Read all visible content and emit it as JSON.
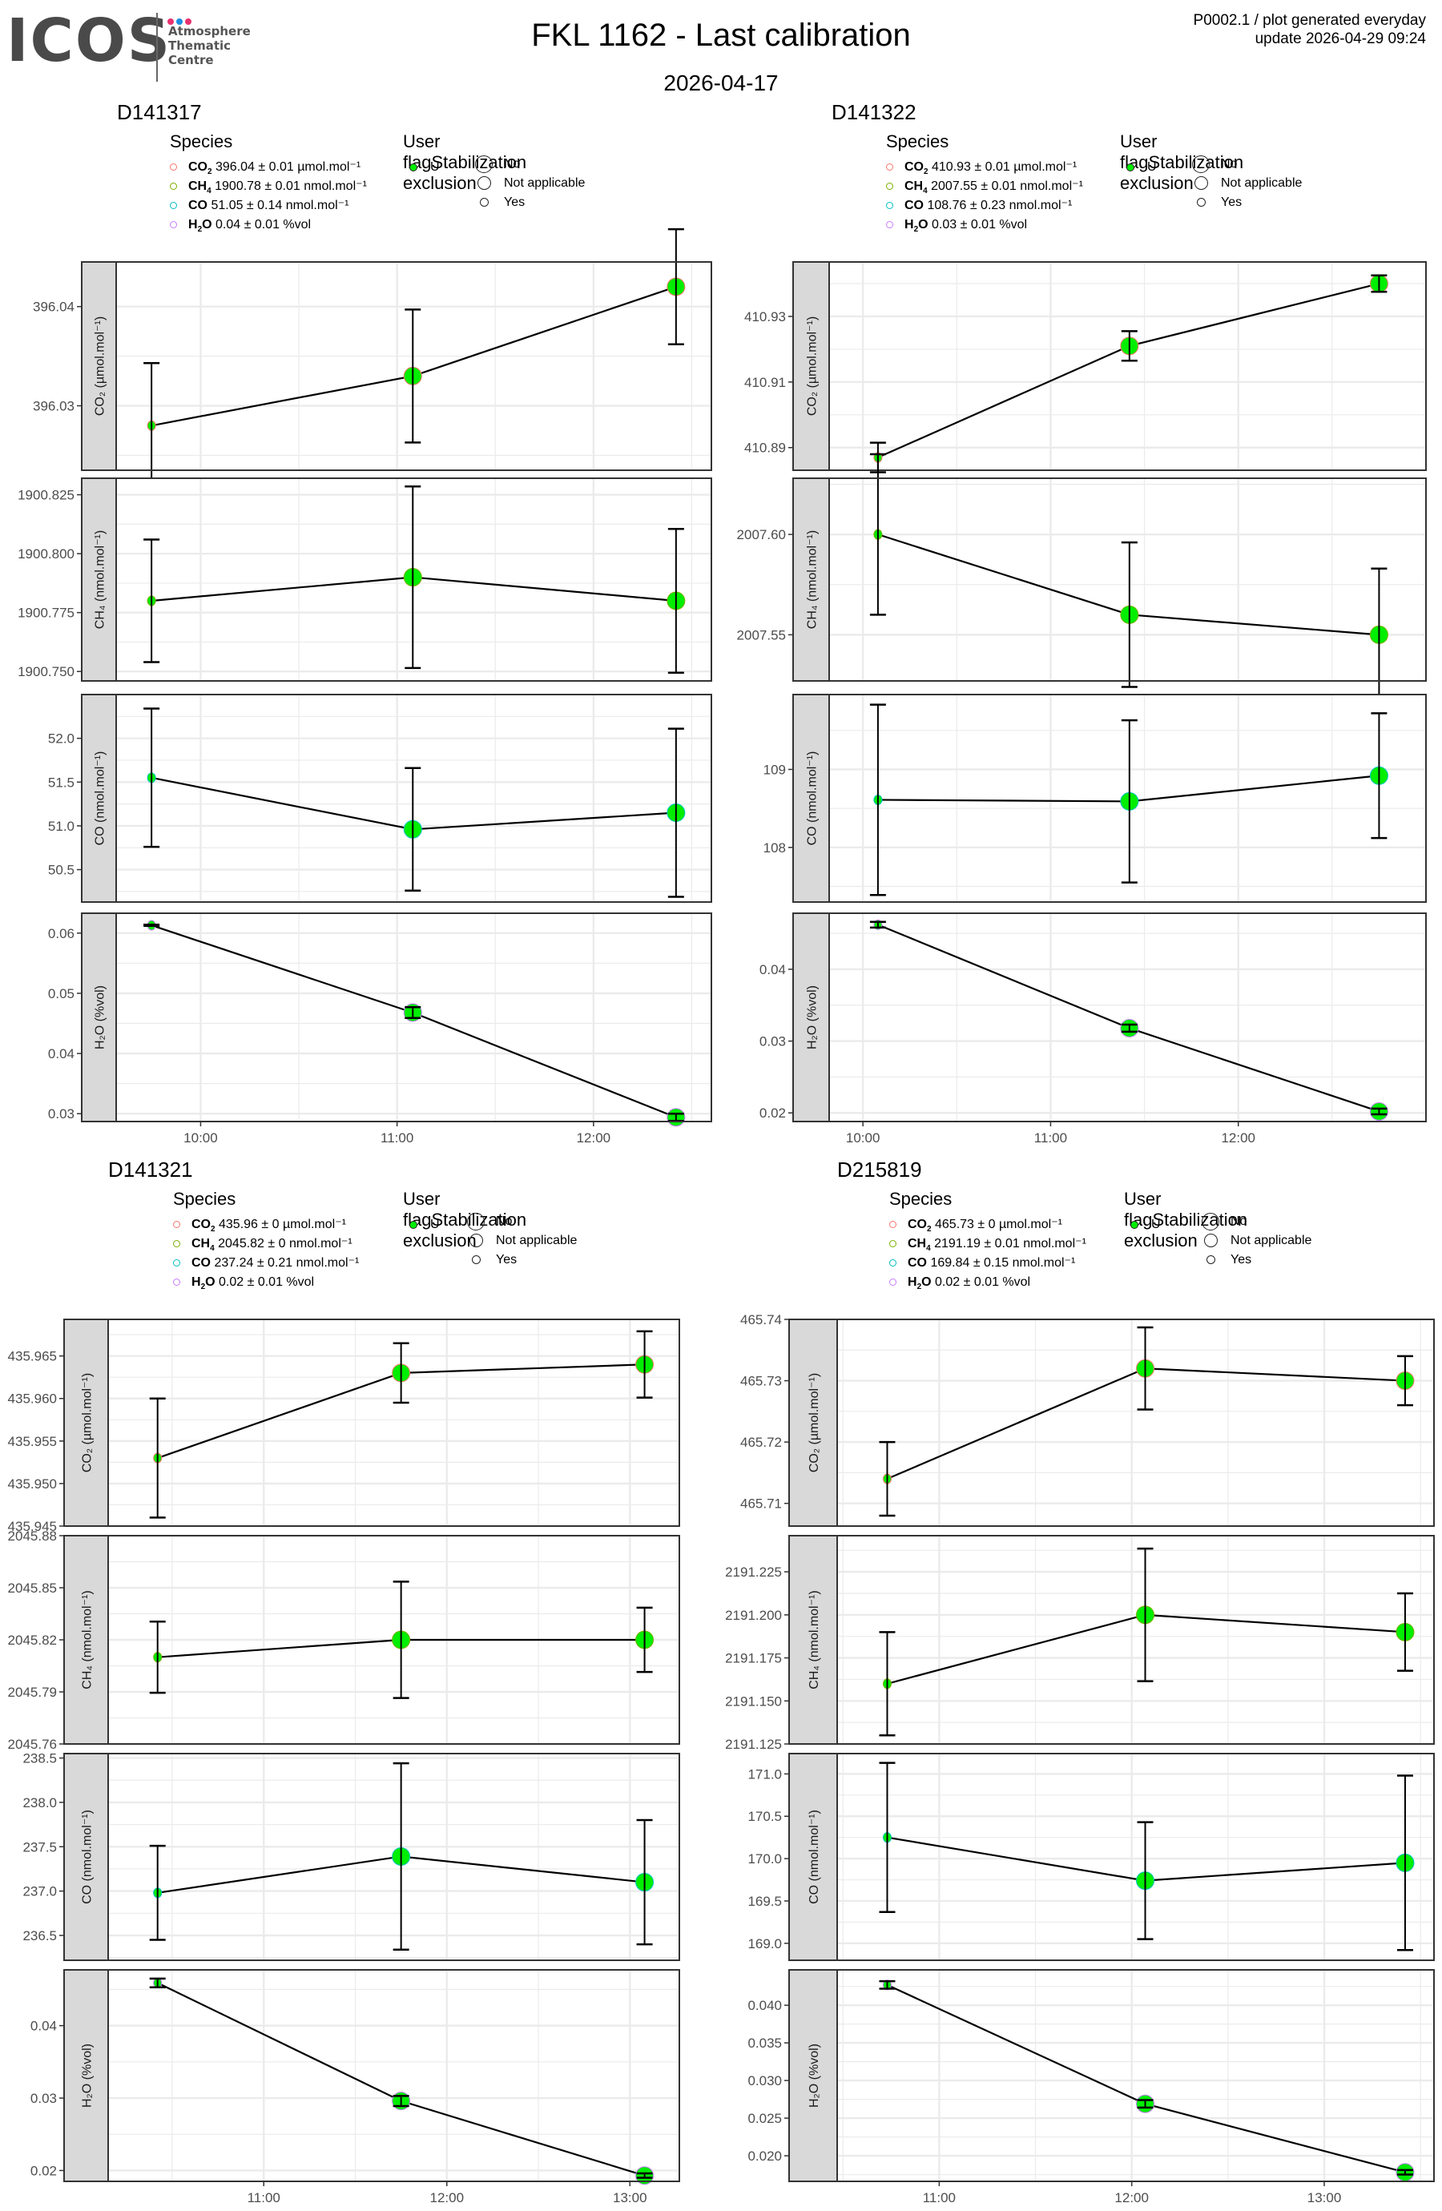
{
  "header": {
    "logo_text": "ICOS",
    "logo_subtitle": [
      "Atmosphere",
      "Thematic",
      "Centre"
    ],
    "logo_dot_colors": [
      "#e8326f",
      "#1e8fe0",
      "#e8326f"
    ],
    "title": "FKL 1162 - Last calibration",
    "subtitle": "2026-04-17",
    "meta_line1": "P0002.1 / plot generated everyday",
    "meta_line2": "update  2026-04-29 09:24"
  },
  "legend_labels": {
    "species_title": "Species",
    "user_flag_title": "User flag",
    "stab_title": "Stabilization exclusion",
    "user_flag_items": [
      "U"
    ],
    "stab_items": [
      "No",
      "Not applicable",
      "Yes"
    ]
  },
  "colors": {
    "CO2": "#f8766d",
    "CH4": "#7cae00",
    "CO": "#00bfc4",
    "H2O": "#c77cff",
    "point_fill": "#00ee00",
    "strip_bg": "#d9d9d9",
    "grid": "#ebebeb"
  },
  "chart_data": [
    {
      "type": "line",
      "cylinder": "D141317",
      "legend": [
        {
          "species": "CO2",
          "label": "CO2",
          "value": "396.04",
          "unc": "0.01",
          "unit": "µmol.mol⁻¹"
        },
        {
          "species": "CH4",
          "label": "CH4",
          "value": "1900.78",
          "unc": "0.01",
          "unit": "nmol.mol⁻¹"
        },
        {
          "species": "CO",
          "label": "CO",
          "value": "51.05",
          "unc": "0.14",
          "unit": "nmol.mol⁻¹"
        },
        {
          "species": "H2O",
          "label": "H2O",
          "value": "0.04",
          "unc": "0.01",
          "unit": "%vol"
        }
      ],
      "x_ticks": [
        "10:00",
        "11:00",
        "12:00"
      ],
      "x_tick_hours": [
        10,
        11,
        12
      ],
      "x_range_hours": [
        9.57,
        12.6
      ],
      "x_hours": [
        9.75,
        11.08,
        12.42
      ],
      "panels": [
        {
          "species": "CO2",
          "ylabel": "CO₂ (µmol.mol⁻¹)",
          "ylim": [
            396.0235,
            396.0445
          ],
          "yticks": [
            396.03,
            396.04
          ],
          "ytick_labels": [
            "396.03",
            "396.04"
          ],
          "y": [
            396.028,
            396.033,
            396.042
          ],
          "err": [
            0.0063,
            0.0067,
            0.0058
          ],
          "sizes": [
            "small",
            "large",
            "large"
          ]
        },
        {
          "species": "CH4",
          "ylabel": "CH₄ (nmol.mol⁻¹)",
          "ylim": [
            1900.746,
            1900.832
          ],
          "yticks": [
            1900.75,
            1900.775,
            1900.8,
            1900.825
          ],
          "ytick_labels": [
            "1900.750",
            "1900.775",
            "1900.800",
            "1900.825"
          ],
          "y": [
            1900.78,
            1900.79,
            1900.78
          ],
          "err": [
            0.026,
            0.0385,
            0.0305
          ],
          "sizes": [
            "small",
            "large",
            "large"
          ]
        },
        {
          "species": "CO",
          "ylabel": "CO (nmol.mol⁻¹)",
          "ylim": [
            50.13,
            52.5
          ],
          "yticks": [
            50.5,
            51.0,
            51.5,
            52.0
          ],
          "ytick_labels": [
            "50.5",
            "51.0",
            "51.5",
            "52.0"
          ],
          "y": [
            51.55,
            50.96,
            51.15
          ],
          "err": [
            0.79,
            0.7,
            0.96
          ],
          "sizes": [
            "small",
            "large",
            "large"
          ]
        },
        {
          "species": "H2O",
          "ylabel": "H₂O (%vol)",
          "ylim": [
            0.0287,
            0.0633
          ],
          "yticks": [
            0.03,
            0.04,
            0.05,
            0.06
          ],
          "ytick_labels": [
            "0.03",
            "0.04",
            "0.05",
            "0.06"
          ],
          "y": [
            0.0613,
            0.0468,
            0.0294
          ],
          "err": [
            0.0001,
            0.0009,
            0.0006
          ],
          "sizes": [
            "small",
            "large",
            "large"
          ]
        }
      ]
    },
    {
      "type": "line",
      "cylinder": "D141322",
      "legend": [
        {
          "species": "CO2",
          "label": "CO2",
          "value": "410.93",
          "unc": "0.01",
          "unit": "µmol.mol⁻¹"
        },
        {
          "species": "CH4",
          "label": "CH4",
          "value": "2007.55",
          "unc": "0.01",
          "unit": "nmol.mol⁻¹"
        },
        {
          "species": "CO",
          "label": "CO",
          "value": "108.76",
          "unc": "0.23",
          "unit": "nmol.mol⁻¹"
        },
        {
          "species": "H2O",
          "label": "H2O",
          "value": "0.03",
          "unc": "0.01",
          "unit": "%vol"
        }
      ],
      "x_ticks": [
        "10:00",
        "11:00",
        "12:00"
      ],
      "x_tick_hours": [
        10,
        11,
        12
      ],
      "x_range_hours": [
        9.82,
        13.0
      ],
      "x_hours": [
        10.08,
        11.42,
        12.75
      ],
      "panels": [
        {
          "species": "CO2",
          "ylabel": "CO₂ (µmol.mol⁻¹)",
          "ylim": [
            410.8831,
            410.9466
          ],
          "yticks": [
            410.89,
            410.91,
            410.93
          ],
          "ytick_labels": [
            "410.89",
            "410.91",
            "410.93"
          ],
          "y": [
            410.887,
            410.921,
            410.94
          ],
          "err": [
            0.0045,
            0.0045,
            0.0025
          ],
          "sizes": [
            "small",
            "large",
            "large"
          ]
        },
        {
          "species": "CH4",
          "ylabel": "CH₄ (nmol.mol⁻¹)",
          "ylim": [
            2007.527,
            2007.628
          ],
          "yticks": [
            2007.55,
            2007.6
          ],
          "ytick_labels": [
            "2007.55",
            "2007.60"
          ],
          "y": [
            2007.6,
            2007.56,
            2007.55
          ],
          "err": [
            0.04,
            0.036,
            0.033
          ],
          "sizes": [
            "small",
            "large",
            "large"
          ]
        },
        {
          "species": "CO",
          "ylabel": "CO (nmol.mol⁻¹)",
          "ylim": [
            107.3,
            109.96
          ],
          "yticks": [
            108,
            109
          ],
          "ytick_labels": [
            "108",
            "109"
          ],
          "y": [
            108.61,
            108.59,
            108.92
          ],
          "err": [
            1.22,
            1.04,
            0.8
          ],
          "sizes": [
            "small",
            "large",
            "large"
          ]
        },
        {
          "species": "H2O",
          "ylabel": "H₂O (%vol)",
          "ylim": [
            0.0188,
            0.0478
          ],
          "yticks": [
            0.02,
            0.03,
            0.04
          ],
          "ytick_labels": [
            "0.02",
            "0.03",
            "0.04"
          ],
          "y": [
            0.0462,
            0.0318,
            0.0202
          ],
          "err": [
            0.0004,
            0.0005,
            0.0004
          ],
          "sizes": [
            "small",
            "large",
            "large"
          ]
        }
      ]
    },
    {
      "type": "line",
      "cylinder": "D141321",
      "legend": [
        {
          "species": "CO2",
          "label": "CO2",
          "value": "435.96",
          "unc": "0",
          "unit": "µmol.mol⁻¹"
        },
        {
          "species": "CH4",
          "label": "CH4",
          "value": "2045.82",
          "unc": "0",
          "unit": "nmol.mol⁻¹"
        },
        {
          "species": "CO",
          "label": "CO",
          "value": "237.24",
          "unc": "0.21",
          "unit": "nmol.mol⁻¹"
        },
        {
          "species": "H2O",
          "label": "H2O",
          "value": "0.02",
          "unc": "0.01",
          "unit": "%vol"
        }
      ],
      "x_ticks": [
        "11:00",
        "12:00",
        "13:00"
      ],
      "x_tick_hours": [
        11,
        12,
        13
      ],
      "x_range_hours": [
        10.15,
        13.27
      ],
      "x_hours": [
        10.42,
        11.75,
        13.08
      ],
      "panels": [
        {
          "species": "CO2",
          "ylabel": "CO₂ (µmol.mol⁻¹)",
          "ylim": [
            435.945,
            435.9693
          ],
          "yticks": [
            435.945,
            435.95,
            435.955,
            435.96,
            435.965
          ],
          "ytick_labels": [
            "435.945",
            "435.950",
            "435.955",
            "435.960",
            "435.965"
          ],
          "y": [
            435.953,
            435.963,
            435.964
          ],
          "err": [
            0.007,
            0.0035,
            0.0039
          ],
          "sizes": [
            "small",
            "large",
            "large"
          ]
        },
        {
          "species": "CH4",
          "ylabel": "CH₄ (nmol.mol⁻¹)",
          "ylim": [
            2045.76,
            2045.88
          ],
          "yticks": [
            2045.76,
            2045.79,
            2045.82,
            2045.85,
            2045.88
          ],
          "ytick_labels": [
            "2045.76",
            "2045.79",
            "2045.82",
            "2045.85",
            "2045.88"
          ],
          "y": [
            2045.81,
            2045.82,
            2045.82
          ],
          "err": [
            0.0205,
            0.0335,
            0.0185
          ],
          "sizes": [
            "small",
            "large",
            "large"
          ]
        },
        {
          "species": "CO",
          "ylabel": "CO (nmol.mol⁻¹)",
          "ylim": [
            236.22,
            238.55
          ],
          "yticks": [
            236.5,
            237.0,
            237.5,
            238.0,
            238.5
          ],
          "ytick_labels": [
            "236.5",
            "237.0",
            "237.5",
            "238.0",
            "238.5"
          ],
          "y": [
            236.98,
            237.39,
            237.1
          ],
          "err": [
            0.53,
            1.05,
            0.7
          ],
          "sizes": [
            "small",
            "large",
            "large"
          ]
        },
        {
          "species": "H2O",
          "ylabel": "H₂O (%vol)",
          "ylim": [
            0.0185,
            0.0477
          ],
          "yticks": [
            0.02,
            0.03,
            0.04
          ],
          "ytick_labels": [
            "0.02",
            "0.03",
            "0.04"
          ],
          "y": [
            0.0459,
            0.0296,
            0.0193
          ],
          "err": [
            0.0006,
            0.0007,
            0.0003
          ],
          "sizes": [
            "small",
            "large",
            "large"
          ]
        }
      ]
    },
    {
      "type": "line",
      "cylinder": "D215819",
      "legend": [
        {
          "species": "CO2",
          "label": "CO2",
          "value": "465.73",
          "unc": "0",
          "unit": "µmol.mol⁻¹"
        },
        {
          "species": "CH4",
          "label": "CH4",
          "value": "2191.19",
          "unc": "0.01",
          "unit": "nmol.mol⁻¹"
        },
        {
          "species": "CO",
          "label": "CO",
          "value": "169.84",
          "unc": "0.15",
          "unit": "nmol.mol⁻¹"
        },
        {
          "species": "H2O",
          "label": "H2O",
          "value": "0.02",
          "unc": "0.01",
          "unit": "%vol"
        }
      ],
      "x_ticks": [
        "11:00",
        "12:00",
        "13:00"
      ],
      "x_tick_hours": [
        11,
        12,
        13
      ],
      "x_range_hours": [
        10.47,
        13.57
      ],
      "x_hours": [
        10.73,
        12.07,
        13.42
      ],
      "panels": [
        {
          "species": "CO2",
          "ylabel": "CO₂ (µmol.mol⁻¹)",
          "ylim": [
            465.7063,
            465.74
          ],
          "yticks": [
            465.71,
            465.72,
            465.73,
            465.74
          ],
          "ytick_labels": [
            "465.71",
            "465.72",
            "465.73",
            "465.74"
          ],
          "y": [
            465.714,
            465.732,
            465.73
          ],
          "err": [
            0.006,
            0.0067,
            0.004
          ],
          "sizes": [
            "small",
            "large",
            "large"
          ]
        },
        {
          "species": "CH4",
          "ylabel": "CH₄ (nmol.mol⁻¹)",
          "ylim": [
            2191.125,
            2191.246
          ],
          "yticks": [
            2191.125,
            2191.15,
            2191.175,
            2191.2,
            2191.225
          ],
          "ytick_labels": [
            "2191.125",
            "2191.150",
            "2191.175",
            "2191.200",
            "2191.225"
          ],
          "y": [
            2191.16,
            2191.2,
            2191.19
          ],
          "err": [
            0.03,
            0.0385,
            0.0225
          ],
          "sizes": [
            "small",
            "large",
            "large"
          ]
        },
        {
          "species": "CO",
          "ylabel": "CO (nmol.mol⁻¹)",
          "ylim": [
            168.8,
            171.24
          ],
          "yticks": [
            169.0,
            169.5,
            170.0,
            170.5,
            171.0
          ],
          "ytick_labels": [
            "169.0",
            "169.5",
            "170.0",
            "170.5",
            "171.0"
          ],
          "y": [
            170.25,
            169.74,
            169.95
          ],
          "err": [
            0.88,
            0.69,
            1.03
          ],
          "sizes": [
            "small",
            "large",
            "large"
          ]
        },
        {
          "species": "H2O",
          "ylabel": "H₂O (%vol)",
          "ylim": [
            0.0166,
            0.0447
          ],
          "yticks": [
            0.02,
            0.025,
            0.03,
            0.035,
            0.04
          ],
          "ytick_labels": [
            "0.020",
            "0.025",
            "0.030",
            "0.035",
            "0.040"
          ],
          "y": [
            0.0427,
            0.0269,
            0.0178
          ],
          "err": [
            0.0005,
            0.0005,
            0.0003
          ],
          "sizes": [
            "small",
            "large",
            "large"
          ]
        }
      ]
    }
  ]
}
